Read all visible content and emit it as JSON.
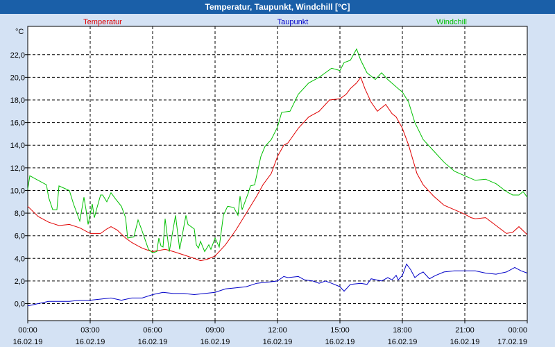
{
  "window": {
    "title": "Temperatur, Taupunkt, Windchill [°C]"
  },
  "colors": {
    "title_bar": "#1a5fa8",
    "background": "#d4e2f4",
    "plot_area": "#ffffff",
    "grid": "#000000"
  },
  "chart_data": {
    "type": "line",
    "title": "Temperatur, Taupunkt, Windchill [°C]",
    "ylabel": "°C",
    "xlabel": "",
    "ylim": [
      -1.5,
      24.5
    ],
    "xlim": [
      0,
      24
    ],
    "grid": true,
    "legend_placement": "top",
    "y_ticks": [
      0,
      2,
      4,
      6,
      8,
      10,
      12,
      14,
      16,
      18,
      20,
      22
    ],
    "y_tick_labels": [
      "0,0",
      "2,0",
      "4,0",
      "6,0",
      "8,0",
      "10,0",
      "12,0",
      "14,0",
      "16,0",
      "18,0",
      "20,0",
      "22,0"
    ],
    "x_ticks": [
      0,
      3,
      6,
      9,
      12,
      15,
      18,
      21,
      24
    ],
    "x_tick_labels": [
      {
        "time": "00:00",
        "date": "16.02.19"
      },
      {
        "time": "03:00",
        "date": "16.02.19"
      },
      {
        "time": "06:00",
        "date": "16.02.19"
      },
      {
        "time": "09:00",
        "date": "16.02.19"
      },
      {
        "time": "12:00",
        "date": "16.02.19"
      },
      {
        "time": "15:00",
        "date": "16.02.19"
      },
      {
        "time": "18:00",
        "date": "16.02.19"
      },
      {
        "time": "21:00",
        "date": "16.02.19"
      },
      {
        "time": "00:00",
        "date": "17.02.19"
      }
    ],
    "series": [
      {
        "name": "Temperatur",
        "color": "#e00000",
        "points": [
          [
            0,
            8.6
          ],
          [
            0.5,
            7.7
          ],
          [
            1,
            7.2
          ],
          [
            1.5,
            6.9
          ],
          [
            2,
            7.0
          ],
          [
            2.5,
            6.7
          ],
          [
            3,
            6.2
          ],
          [
            3.5,
            6.2
          ],
          [
            3.8,
            6.6
          ],
          [
            4,
            6.8
          ],
          [
            4.3,
            6.5
          ],
          [
            4.7,
            5.8
          ],
          [
            5,
            5.4
          ],
          [
            5.3,
            5.1
          ],
          [
            5.5,
            4.9
          ],
          [
            5.8,
            4.7
          ],
          [
            6,
            4.6
          ],
          [
            6.3,
            4.7
          ],
          [
            6.6,
            4.8
          ],
          [
            7,
            4.6
          ],
          [
            7.5,
            4.3
          ],
          [
            8,
            4.0
          ],
          [
            8.3,
            3.8
          ],
          [
            8.6,
            3.9
          ],
          [
            9,
            4.2
          ],
          [
            9.5,
            5.2
          ],
          [
            10,
            6.5
          ],
          [
            10.5,
            8.0
          ],
          [
            11,
            9.5
          ],
          [
            11.3,
            10.5
          ],
          [
            11.7,
            11.5
          ],
          [
            12,
            13.0
          ],
          [
            12.3,
            14.0
          ],
          [
            12.5,
            14.2
          ],
          [
            13,
            15.5
          ],
          [
            13.5,
            16.5
          ],
          [
            14,
            17.0
          ],
          [
            14.5,
            18.0
          ],
          [
            15,
            18.1
          ],
          [
            15.3,
            18.5
          ],
          [
            15.5,
            19.0
          ],
          [
            15.8,
            19.5
          ],
          [
            16,
            20.0
          ],
          [
            16.2,
            19.0
          ],
          [
            16.5,
            17.8
          ],
          [
            16.8,
            17.0
          ],
          [
            17,
            17.3
          ],
          [
            17.2,
            17.6
          ],
          [
            17.5,
            16.8
          ],
          [
            17.7,
            16.5
          ],
          [
            18,
            15.5
          ],
          [
            18.3,
            14.0
          ],
          [
            18.7,
            11.5
          ],
          [
            19,
            10.5
          ],
          [
            19.5,
            9.5
          ],
          [
            20,
            8.7
          ],
          [
            20.5,
            8.3
          ],
          [
            21,
            7.9
          ],
          [
            21.3,
            7.6
          ],
          [
            21.5,
            7.5
          ],
          [
            22,
            7.6
          ],
          [
            22.5,
            6.9
          ],
          [
            23,
            6.2
          ],
          [
            23.3,
            6.3
          ],
          [
            23.6,
            6.8
          ],
          [
            24,
            6.1
          ]
        ]
      },
      {
        "name": "Taupunkt",
        "color": "#0000c8",
        "points": [
          [
            0,
            -0.2
          ],
          [
            0.5,
            0.0
          ],
          [
            1,
            0.2
          ],
          [
            1.5,
            0.2
          ],
          [
            2,
            0.2
          ],
          [
            2.5,
            0.3
          ],
          [
            3,
            0.3
          ],
          [
            3.5,
            0.4
          ],
          [
            4,
            0.5
          ],
          [
            4.5,
            0.3
          ],
          [
            5,
            0.5
          ],
          [
            5.5,
            0.5
          ],
          [
            6,
            0.8
          ],
          [
            6.5,
            1.0
          ],
          [
            7,
            0.9
          ],
          [
            7.5,
            0.9
          ],
          [
            8,
            0.8
          ],
          [
            8.5,
            0.9
          ],
          [
            9,
            1.0
          ],
          [
            9.5,
            1.3
          ],
          [
            10,
            1.4
          ],
          [
            10.5,
            1.5
          ],
          [
            11,
            1.8
          ],
          [
            11.5,
            1.9
          ],
          [
            12,
            2.0
          ],
          [
            12.3,
            2.4
          ],
          [
            12.5,
            2.3
          ],
          [
            13,
            2.4
          ],
          [
            13.3,
            2.1
          ],
          [
            13.7,
            2.0
          ],
          [
            14,
            1.8
          ],
          [
            14.3,
            2.0
          ],
          [
            14.6,
            1.8
          ],
          [
            15,
            1.5
          ],
          [
            15.2,
            1.1
          ],
          [
            15.5,
            1.7
          ],
          [
            16,
            1.8
          ],
          [
            16.3,
            1.7
          ],
          [
            16.5,
            2.2
          ],
          [
            17,
            2.0
          ],
          [
            17.3,
            2.3
          ],
          [
            17.5,
            2.1
          ],
          [
            17.7,
            2.5
          ],
          [
            17.8,
            2.1
          ],
          [
            18,
            2.5
          ],
          [
            18.2,
            3.5
          ],
          [
            18.4,
            3.0
          ],
          [
            18.6,
            2.3
          ],
          [
            18.8,
            2.6
          ],
          [
            19,
            2.8
          ],
          [
            19.3,
            2.2
          ],
          [
            19.6,
            2.5
          ],
          [
            20,
            2.8
          ],
          [
            20.5,
            2.9
          ],
          [
            21,
            2.9
          ],
          [
            21.5,
            2.9
          ],
          [
            22,
            2.7
          ],
          [
            22.5,
            2.6
          ],
          [
            23,
            2.8
          ],
          [
            23.4,
            3.2
          ],
          [
            23.7,
            2.9
          ],
          [
            24,
            2.7
          ]
        ]
      },
      {
        "name": "Windchill",
        "color": "#00c000",
        "points": [
          [
            0,
            10.1
          ],
          [
            0.1,
            11.3
          ],
          [
            0.5,
            10.9
          ],
          [
            0.9,
            10.5
          ],
          [
            1,
            9.4
          ],
          [
            1.2,
            8.3
          ],
          [
            1.4,
            8.3
          ],
          [
            1.5,
            10.4
          ],
          [
            2,
            10.0
          ],
          [
            2.2,
            8.8
          ],
          [
            2.5,
            7.3
          ],
          [
            2.7,
            9.4
          ],
          [
            2.8,
            8.3
          ],
          [
            2.9,
            7.0
          ],
          [
            3.1,
            8.8
          ],
          [
            3.2,
            7.6
          ],
          [
            3.3,
            8.3
          ],
          [
            3.5,
            9.6
          ],
          [
            3.6,
            9.6
          ],
          [
            3.8,
            9.0
          ],
          [
            4,
            9.8
          ],
          [
            4.2,
            9.3
          ],
          [
            4.5,
            8.6
          ],
          [
            4.7,
            7.6
          ],
          [
            4.8,
            5.8
          ],
          [
            5.1,
            5.9
          ],
          [
            5.3,
            7.4
          ],
          [
            5.5,
            6.4
          ],
          [
            5.8,
            4.8
          ],
          [
            6,
            4.5
          ],
          [
            6.2,
            4.6
          ],
          [
            6.3,
            5.8
          ],
          [
            6.4,
            5.1
          ],
          [
            6.5,
            5.0
          ],
          [
            6.6,
            7.5
          ],
          [
            6.8,
            4.6
          ],
          [
            7.1,
            7.8
          ],
          [
            7.3,
            4.8
          ],
          [
            7.6,
            7.8
          ],
          [
            7.7,
            7.0
          ],
          [
            8,
            6.6
          ],
          [
            8.1,
            5.2
          ],
          [
            8.2,
            4.9
          ],
          [
            8.3,
            5.5
          ],
          [
            8.5,
            4.6
          ],
          [
            8.7,
            5.2
          ],
          [
            8.8,
            4.8
          ],
          [
            9,
            5.8
          ],
          [
            9.2,
            5.0
          ],
          [
            9.4,
            7.8
          ],
          [
            9.6,
            8.6
          ],
          [
            9.9,
            8.5
          ],
          [
            10.1,
            7.8
          ],
          [
            10.2,
            9.5
          ],
          [
            10.3,
            8.3
          ],
          [
            10.6,
            9.8
          ],
          [
            10.7,
            10.4
          ],
          [
            10.9,
            10.5
          ],
          [
            11.2,
            13.0
          ],
          [
            11.4,
            13.9
          ],
          [
            11.7,
            14.5
          ],
          [
            12,
            15.6
          ],
          [
            12.2,
            16.9
          ],
          [
            12.6,
            17.0
          ],
          [
            13,
            18.5
          ],
          [
            13.5,
            19.5
          ],
          [
            14,
            20.0
          ],
          [
            14.3,
            20.4
          ],
          [
            14.6,
            20.8
          ],
          [
            15,
            20.6
          ],
          [
            15.2,
            21.3
          ],
          [
            15.5,
            21.5
          ],
          [
            15.8,
            22.5
          ],
          [
            16,
            21.5
          ],
          [
            16.3,
            20.4
          ],
          [
            16.7,
            19.8
          ],
          [
            17,
            20.4
          ],
          [
            17.3,
            19.8
          ],
          [
            17.8,
            19.0
          ],
          [
            18,
            18.7
          ],
          [
            18.3,
            17.8
          ],
          [
            18.6,
            16.0
          ],
          [
            19,
            14.5
          ],
          [
            19.5,
            13.5
          ],
          [
            20,
            12.5
          ],
          [
            20.5,
            11.7
          ],
          [
            21,
            11.3
          ],
          [
            21.5,
            10.9
          ],
          [
            22,
            11.0
          ],
          [
            22.5,
            10.6
          ],
          [
            23,
            9.9
          ],
          [
            23.3,
            9.6
          ],
          [
            23.6,
            9.6
          ],
          [
            23.8,
            9.9
          ],
          [
            24,
            9.4
          ]
        ]
      }
    ]
  }
}
